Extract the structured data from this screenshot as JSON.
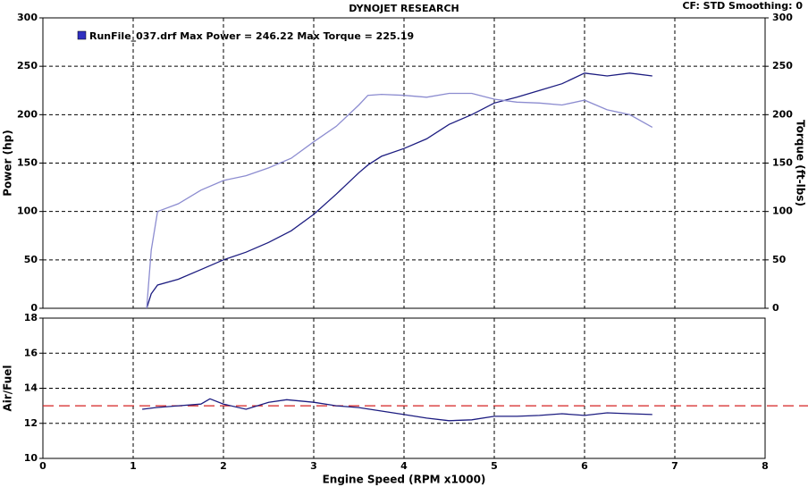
{
  "chart_data": [
    {
      "type": "line",
      "title": "DYNOJET RESEARCH",
      "settings_text": "CF: STD  Smoothing: 0",
      "legend_text": "RunFile_037.drf Max Power = 246.22    Max Torque = 225.19",
      "y_label": "Power (hp)",
      "y2_label": "Torque (ft-lbs)",
      "xlim": [
        0,
        8
      ],
      "xticks": [
        0,
        1,
        2,
        3,
        4,
        5,
        6,
        7,
        8
      ],
      "ylim": [
        0,
        300
      ],
      "yticks": [
        0,
        50,
        100,
        150,
        200,
        250,
        300
      ],
      "y2lim": [
        0,
        300
      ],
      "y2ticks": [
        0,
        50,
        100,
        150,
        200,
        250,
        300
      ],
      "grid": true,
      "x": [
        1.15,
        1.2,
        1.27,
        1.5,
        1.75,
        2,
        2.25,
        2.5,
        2.75,
        3,
        3.25,
        3.5,
        3.6,
        3.75,
        4,
        4.25,
        4.5,
        4.75,
        5,
        5.25,
        5.5,
        5.75,
        6,
        6.25,
        6.5,
        6.75
      ],
      "series": [
        {
          "color": "#1c1c80",
          "values": [
            0,
            15,
            24,
            30,
            40,
            50,
            58,
            68,
            80,
            97,
            118,
            140,
            148,
            157,
            165,
            175,
            190,
            200,
            212,
            218,
            225,
            232,
            243,
            240,
            243,
            240
          ]
        },
        {
          "color": "#8c8cd0",
          "axis": "y2",
          "values": [
            0,
            60,
            100,
            108,
            122,
            132,
            137,
            145,
            155,
            172,
            188,
            210,
            220,
            221,
            220,
            218,
            222,
            222,
            216,
            213,
            212,
            210,
            215,
            205,
            200,
            187
          ]
        }
      ]
    },
    {
      "type": "line",
      "y_label": "Air/Fuel",
      "x_label": "Engine Speed (RPM x1000)",
      "xlim": [
        0,
        8
      ],
      "xticks": [
        0,
        1,
        2,
        3,
        4,
        5,
        6,
        7,
        8
      ],
      "ylim": [
        10,
        18
      ],
      "yticks": [
        10,
        12,
        14,
        16,
        18
      ],
      "grid": true,
      "reference_line": 13,
      "reference_color": "#d42020",
      "x": [
        1.1,
        1.25,
        1.5,
        1.75,
        1.85,
        2,
        2.25,
        2.5,
        2.7,
        3,
        3.25,
        3.5,
        3.75,
        4,
        4.25,
        4.5,
        4.75,
        5,
        5.25,
        5.5,
        5.75,
        6,
        6.25,
        6.5,
        6.75
      ],
      "series": [
        {
          "color": "#1c1c80",
          "values": [
            12.8,
            12.9,
            13.0,
            13.1,
            13.4,
            13.1,
            12.8,
            13.2,
            13.35,
            13.2,
            13.0,
            12.9,
            12.7,
            12.5,
            12.3,
            12.15,
            12.2,
            12.4,
            12.4,
            12.45,
            12.55,
            12.45,
            12.6,
            12.55,
            12.5
          ]
        }
      ]
    }
  ]
}
